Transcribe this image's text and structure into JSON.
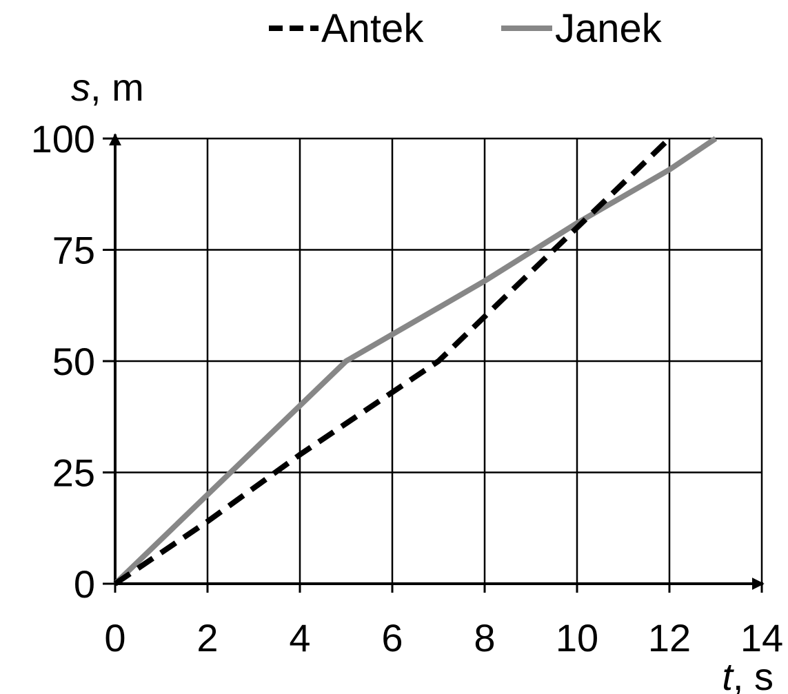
{
  "chart_data": {
    "type": "line",
    "x_ticks": [
      0,
      2,
      4,
      6,
      8,
      10,
      12,
      14
    ],
    "y_ticks": [
      0,
      25,
      50,
      75,
      100
    ],
    "xlim": [
      0,
      14
    ],
    "ylim": [
      0,
      100
    ],
    "grid": true,
    "legend_position": "top",
    "xlabel": {
      "symbol": "t",
      "unit": ", s"
    },
    "ylabel": {
      "symbol": "s",
      "unit": ", m"
    },
    "series": [
      {
        "name": "Antek",
        "style": "dashed",
        "color": "#000000",
        "x": [
          0,
          2,
          4,
          7,
          8,
          10,
          12
        ],
        "y": [
          0,
          14,
          29,
          50,
          60,
          80,
          100
        ]
      },
      {
        "name": "Janek",
        "style": "solid",
        "color": "#878787",
        "x": [
          0,
          2,
          4,
          5,
          7,
          8,
          10,
          12,
          13
        ],
        "y": [
          0,
          20,
          40,
          50,
          62,
          68,
          81,
          93,
          100
        ]
      }
    ]
  }
}
